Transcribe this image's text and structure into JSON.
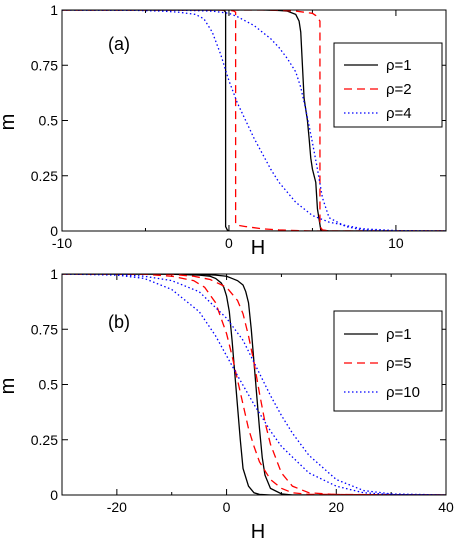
{
  "chart_data": [
    {
      "type": "line",
      "panel_label": "(a)",
      "xlabel": "H",
      "ylabel": "m",
      "xlim": [
        -10,
        13
      ],
      "ylim": [
        0,
        1
      ],
      "xticks": [
        -10,
        0,
        10
      ],
      "xtick_labels": [
        "-10",
        "0",
        "10"
      ],
      "yticks": [
        0,
        0.25,
        0.5,
        0.75,
        1
      ],
      "ytick_labels": [
        "0",
        "0.25",
        "0.5",
        "0.75",
        "1"
      ],
      "legend_position": "top-right",
      "series": [
        {
          "name": "ρ=1",
          "color": "#000000",
          "dash": "solid",
          "branches": [
            {
              "x": [
                -10,
                -1,
                -0.5,
                -0.3,
                -0.2,
                -0.2,
                -0.1,
                0,
                13
              ],
              "y": [
                1,
                1,
                1,
                0.999,
                0.99,
                0.02,
                0.005,
                0,
                0
              ]
            },
            {
              "x": [
                -10,
                2,
                3,
                3.5,
                4,
                4.2,
                4.3,
                4.4,
                4.5,
                4.6,
                4.7,
                4.8,
                4.9,
                5,
                5.2,
                5.3,
                5.5,
                6,
                13
              ],
              "y": [
                1,
                1,
                0.998,
                0.995,
                0.98,
                0.95,
                0.9,
                0.75,
                0.6,
                0.55,
                0.5,
                0.42,
                0.33,
                0.28,
                0.22,
                0.1,
                0.005,
                0,
                0
              ]
            }
          ]
        },
        {
          "name": "ρ=2",
          "color": "#ff0000",
          "dash": "8,5",
          "branches": [
            {
              "x": [
                -10,
                -1,
                0,
                0.3,
                0.4,
                0.4,
                0.6,
                1,
                2,
                3,
                4,
                5,
                13
              ],
              "y": [
                1,
                1,
                1,
                0.995,
                0.99,
                0.03,
                0.025,
                0.02,
                0.01,
                0.005,
                0.002,
                0,
                0
              ]
            },
            {
              "x": [
                -10,
                2,
                3,
                4,
                4.5,
                5,
                5.2,
                5.35,
                5.45,
                5.45,
                5.6,
                6,
                13
              ],
              "y": [
                1,
                1,
                0.999,
                0.995,
                0.99,
                0.985,
                0.975,
                0.96,
                0.95,
                0.02,
                0.005,
                0,
                0
              ]
            }
          ]
        },
        {
          "name": "ρ=4",
          "color": "#0000ff",
          "dash": "1.5,2.5",
          "branches": [
            {
              "x": [
                -10,
                -6,
                -4,
                -3,
                -2,
                -1.5,
                -1,
                -0.5,
                0,
                0.5,
                1,
                1.5,
                2,
                2.5,
                3,
                4,
                5,
                6,
                8,
                10,
                13
              ],
              "y": [
                1,
                0.999,
                0.995,
                0.99,
                0.98,
                0.96,
                0.9,
                0.8,
                0.68,
                0.58,
                0.5,
                0.42,
                0.35,
                0.28,
                0.22,
                0.13,
                0.07,
                0.04,
                0.01,
                0.002,
                0
              ]
            },
            {
              "x": [
                -10,
                -3,
                -1,
                0,
                0.5,
                1,
                1.5,
                2,
                2.5,
                3,
                3.5,
                4,
                4.3,
                4.6,
                5,
                5.3,
                5.6,
                6,
                7,
                8,
                10,
                13
              ],
              "y": [
                1,
                0.999,
                0.995,
                0.985,
                0.97,
                0.95,
                0.93,
                0.9,
                0.87,
                0.83,
                0.78,
                0.72,
                0.65,
                0.55,
                0.4,
                0.28,
                0.15,
                0.06,
                0.02,
                0.005,
                0,
                0
              ]
            }
          ]
        }
      ]
    },
    {
      "type": "line",
      "panel_label": "(b)",
      "xlabel": "H",
      "ylabel": "m",
      "xlim": [
        -30,
        40
      ],
      "ylim": [
        0,
        1
      ],
      "xticks": [
        -20,
        0,
        20,
        40
      ],
      "xtick_labels": [
        "-20",
        "0",
        "20",
        "40"
      ],
      "yticks": [
        0,
        0.25,
        0.5,
        0.75,
        1
      ],
      "ytick_labels": [
        "0",
        "0.25",
        "0.5",
        "0.75",
        "1"
      ],
      "legend_position": "middle-right",
      "series": [
        {
          "name": "ρ=1",
          "color": "#000000",
          "dash": "solid",
          "branches": [
            {
              "x": [
                -30,
                -10,
                -5,
                -3,
                -2,
                -1,
                -0.5,
                0,
                0.5,
                1,
                1.5,
                2,
                2.5,
                3,
                4,
                5,
                6,
                8,
                10,
                40
              ],
              "y": [
                1,
                0.999,
                0.995,
                0.99,
                0.98,
                0.96,
                0.94,
                0.9,
                0.83,
                0.7,
                0.55,
                0.4,
                0.25,
                0.12,
                0.04,
                0.01,
                0.003,
                0,
                0,
                0
              ]
            },
            {
              "x": [
                -30,
                -10,
                -5,
                -2,
                0,
                1,
                2,
                3,
                3.5,
                4,
                4.5,
                5,
                5.5,
                6,
                6.5,
                7,
                8,
                10,
                12,
                40
              ],
              "y": [
                1,
                1,
                0.999,
                0.995,
                0.99,
                0.98,
                0.97,
                0.95,
                0.92,
                0.87,
                0.75,
                0.6,
                0.45,
                0.3,
                0.17,
                0.09,
                0.03,
                0.005,
                0,
                0
              ]
            }
          ]
        },
        {
          "name": "ρ=5",
          "color": "#ff0000",
          "dash": "8,5",
          "branches": [
            {
              "x": [
                -30,
                -15,
                -10,
                -6,
                -4,
                -2,
                0,
                1,
                2,
                3,
                4,
                5,
                6,
                8,
                10,
                12,
                15,
                40
              ],
              "y": [
                1,
                0.999,
                0.99,
                0.97,
                0.94,
                0.87,
                0.73,
                0.63,
                0.52,
                0.41,
                0.3,
                0.22,
                0.15,
                0.07,
                0.03,
                0.01,
                0.003,
                0
              ]
            },
            {
              "x": [
                -30,
                -15,
                -10,
                -6,
                -3,
                0,
                2,
                3,
                4,
                5,
                6,
                7,
                8,
                10,
                12,
                15,
                20,
                40
              ],
              "y": [
                1,
                1,
                0.998,
                0.99,
                0.975,
                0.94,
                0.88,
                0.82,
                0.72,
                0.6,
                0.46,
                0.33,
                0.23,
                0.1,
                0.04,
                0.01,
                0.002,
                0
              ]
            }
          ]
        },
        {
          "name": "ρ=10",
          "color": "#0000ff",
          "dash": "1.5,2.5",
          "branches": [
            {
              "x": [
                -30,
                -20,
                -15,
                -10,
                -5,
                -2,
                0,
                2,
                5,
                8,
                10,
                15,
                20,
                25,
                30,
                40
              ],
              "y": [
                1,
                0.995,
                0.98,
                0.93,
                0.83,
                0.72,
                0.63,
                0.54,
                0.41,
                0.29,
                0.22,
                0.1,
                0.04,
                0.01,
                0.002,
                0
              ]
            },
            {
              "x": [
                -30,
                -20,
                -15,
                -10,
                -5,
                0,
                3,
                5,
                8,
                10,
                12,
                15,
                20,
                25,
                30,
                40
              ],
              "y": [
                1,
                0.998,
                0.99,
                0.97,
                0.92,
                0.8,
                0.7,
                0.6,
                0.45,
                0.36,
                0.28,
                0.18,
                0.07,
                0.02,
                0.005,
                0
              ]
            }
          ]
        }
      ]
    }
  ]
}
